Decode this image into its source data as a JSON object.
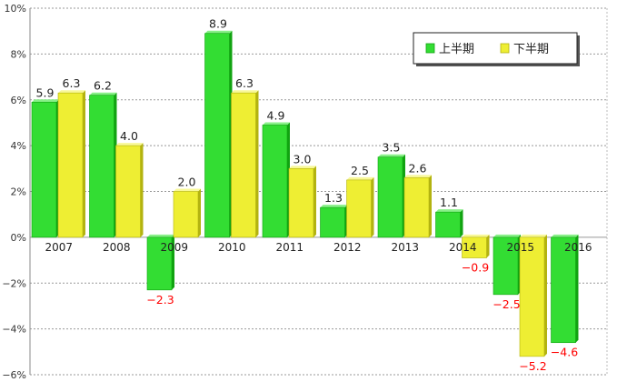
{
  "chart_data": {
    "type": "bar",
    "categories": [
      "2007",
      "2008",
      "2009",
      "2010",
      "2011",
      "2012",
      "2013",
      "2014",
      "2015",
      "2016"
    ],
    "series": [
      {
        "name": "上半期",
        "values": [
          5.9,
          6.2,
          -2.3,
          8.9,
          4.9,
          1.3,
          3.5,
          1.1,
          -2.5,
          -4.6
        ]
      },
      {
        "name": "下半期",
        "values": [
          6.3,
          4.0,
          2.0,
          6.3,
          3.0,
          2.5,
          2.6,
          -0.9,
          -5.2,
          null
        ]
      }
    ],
    "data_labels": [
      [
        "5.9",
        "6.2",
        "−2.3",
        "8.9",
        "4.9",
        "1.3",
        "3.5",
        "1.1",
        "−2.5",
        "−4.6"
      ],
      [
        "6.3",
        "4.0",
        "2.0",
        "6.3",
        "3.0",
        "2.5",
        "2.6",
        "−0.9",
        "−5.2",
        ""
      ]
    ],
    "yticks": [
      -6,
      -4,
      -2,
      0,
      2,
      4,
      6,
      8,
      10
    ],
    "ytick_labels": [
      "−6%",
      "−4%",
      "−2%",
      "0%",
      "2%",
      "4%",
      "6%",
      "8%",
      "10%"
    ],
    "ylim": [
      -6,
      10
    ],
    "grid": true,
    "legend_position": "top-right",
    "colors": {
      "series1_face": "#33dd33",
      "series1_side": "#11a311",
      "series1_top": "#88f088",
      "series2_face": "#eeee33",
      "series2_side": "#b3b310",
      "series2_top": "#f8f898",
      "negative_label": "#ff0000",
      "positive_label": "#222222",
      "grid": "#999999"
    }
  }
}
